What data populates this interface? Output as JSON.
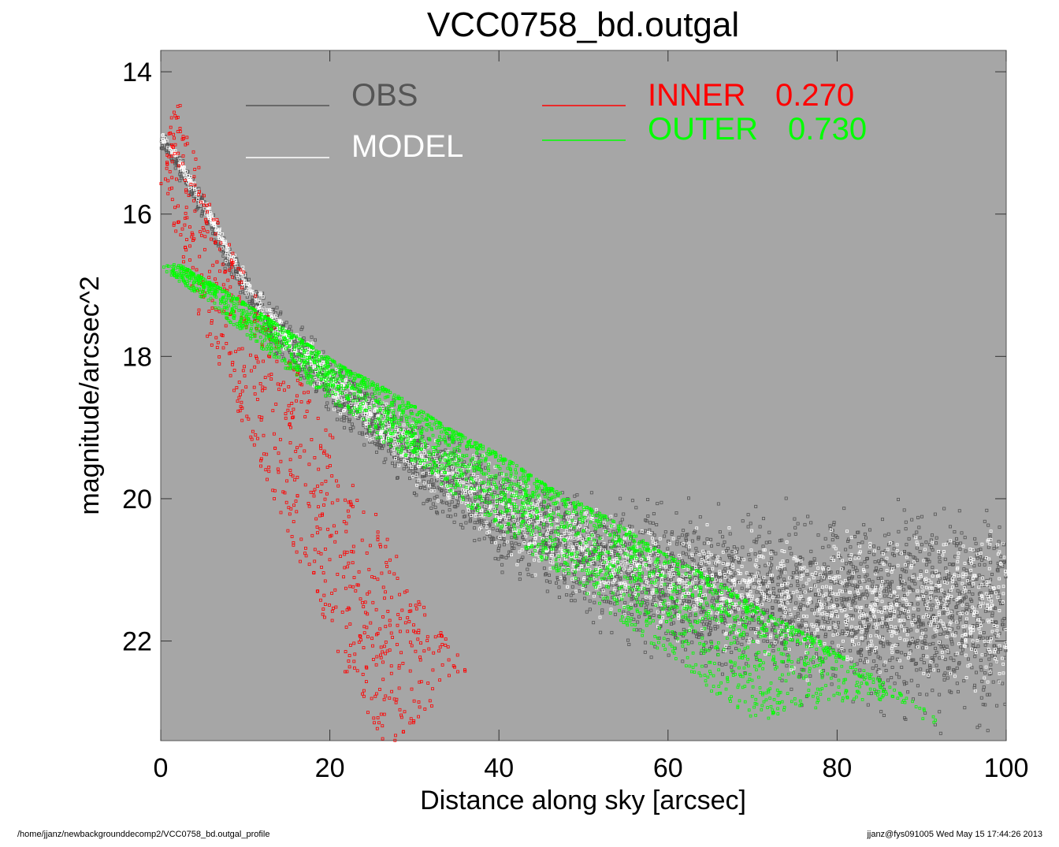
{
  "chart_data": {
    "type": "scatter",
    "title": "VCC0758_bd.outgal",
    "xlabel": "Distance along sky [arcsec]",
    "ylabel": "magnitude/arcsec^2",
    "xlim": [
      0,
      100
    ],
    "ylim": [
      23.4,
      13.7
    ],
    "y_inverted": true,
    "x_ticks": [
      "0",
      "20",
      "40",
      "60",
      "80",
      "100"
    ],
    "x_tick_values": [
      0,
      20,
      40,
      60,
      80,
      100
    ],
    "y_ticks": [
      "14",
      "16",
      "18",
      "20",
      "22"
    ],
    "y_tick_values": [
      14,
      16,
      18,
      20,
      22
    ],
    "grid": false,
    "background": "#a6a6a6",
    "legend": [
      {
        "label": "OBS",
        "color": "#555555",
        "placement": "top-left"
      },
      {
        "label": "MODEL",
        "color": "#ffffff",
        "placement": "top-left"
      },
      {
        "label": "INNER",
        "value": "0.270",
        "color": "#ff0000",
        "placement": "top-center"
      },
      {
        "label": "OUTER",
        "value": "0.730",
        "color": "#00ff00",
        "placement": "top-center"
      }
    ],
    "series": [
      {
        "name": "OBS",
        "color": "#555555",
        "marker": "square",
        "x": [
          0.5,
          2,
          4,
          6,
          8,
          10,
          12,
          15,
          18,
          20,
          25,
          30,
          35,
          40,
          45,
          50,
          55,
          60,
          65,
          70,
          75,
          80,
          85,
          90,
          95,
          100
        ],
        "y": [
          15.0,
          15.3,
          15.7,
          16.1,
          16.6,
          17.0,
          17.4,
          17.8,
          18.1,
          18.4,
          18.9,
          19.4,
          19.8,
          20.2,
          20.5,
          20.8,
          21.0,
          21.2,
          21.3,
          21.4,
          21.5,
          21.5,
          21.6,
          21.6,
          21.6,
          21.6
        ]
      },
      {
        "name": "MODEL",
        "color": "#ffffff",
        "marker": "square",
        "x": [
          0.5,
          2,
          4,
          6,
          8,
          10,
          12,
          15,
          18,
          20,
          25,
          30,
          35,
          40,
          45,
          50,
          55,
          60,
          65,
          70,
          75,
          80,
          85,
          90,
          95,
          100
        ],
        "y": [
          15.1,
          15.4,
          15.8,
          16.2,
          16.7,
          17.1,
          17.5,
          17.9,
          18.2,
          18.5,
          19.0,
          19.5,
          19.9,
          20.3,
          20.6,
          20.9,
          21.1,
          21.3,
          21.4,
          21.5,
          21.6,
          21.6,
          21.7,
          21.7,
          21.7,
          21.7
        ]
      },
      {
        "name": "INNER",
        "color": "#ff0000",
        "marker": "square",
        "x": [
          0.5,
          1,
          2,
          3,
          4,
          6,
          8,
          10,
          12,
          14,
          16,
          18,
          20,
          22,
          24,
          26,
          28
        ],
        "y": [
          15.3,
          15.6,
          16.1,
          16.6,
          17.0,
          17.6,
          18.2,
          18.7,
          19.3,
          19.9,
          20.5,
          21.0,
          21.6,
          22.2,
          22.7,
          23.1,
          23.4
        ]
      },
      {
        "name": "OUTER",
        "color": "#00ff00",
        "marker": "square",
        "x": [
          0,
          5,
          10,
          15,
          20,
          25,
          30,
          35,
          40,
          45,
          50,
          55,
          60,
          65,
          70,
          71
        ],
        "y": [
          16.85,
          17.3,
          17.8,
          18.3,
          18.7,
          19.2,
          19.6,
          20.1,
          20.5,
          21.0,
          21.4,
          21.9,
          22.3,
          22.8,
          23.3,
          23.4
        ]
      }
    ]
  },
  "footer": {
    "left": "/home/jjanz/newbackgrounddecomp2/VCC0758_bd.outgal_profile",
    "right": "jjanz@fys091005  Wed May 15 17:44:26 2013"
  }
}
